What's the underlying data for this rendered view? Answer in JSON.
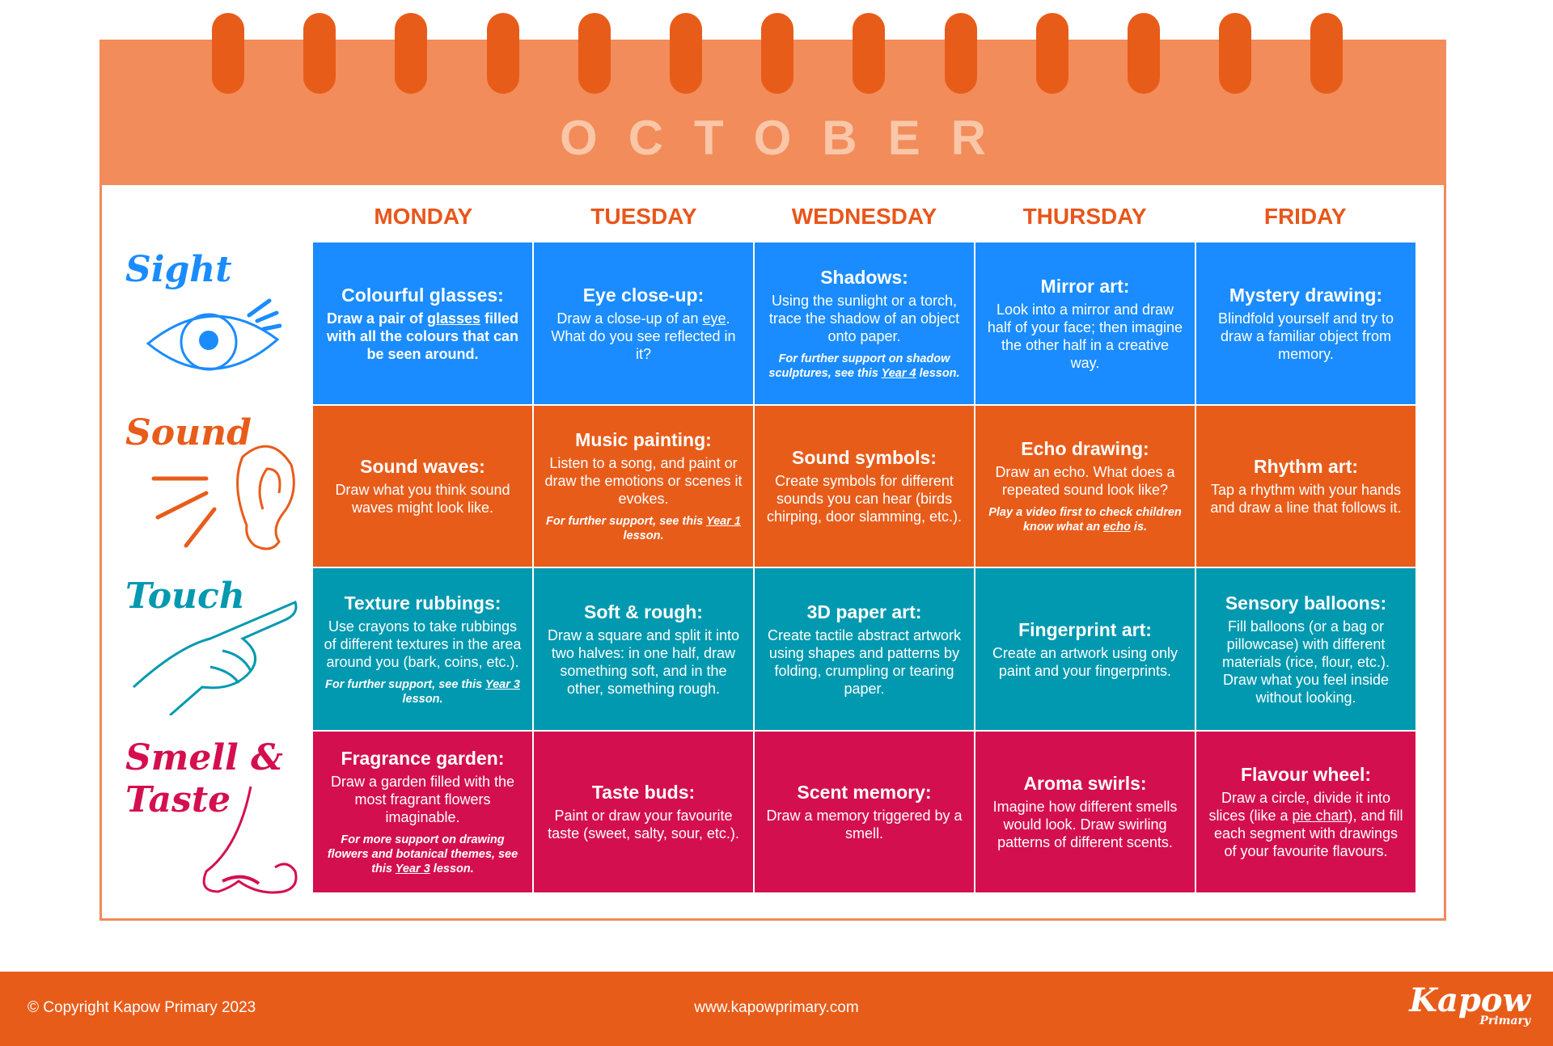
{
  "month": "OCTOBER",
  "days": [
    "MONDAY",
    "TUESDAY",
    "WEDNESDAY",
    "THURSDAY",
    "FRIDAY"
  ],
  "colors": {
    "sight": "#1a8cff",
    "sound": "#e85c1a",
    "touch": "#0099b0",
    "smell_taste": "#d40f4f",
    "header": "#f28c5a",
    "day_heading": "#e8561a"
  },
  "senses": [
    {
      "label": "Sight",
      "icon": "eye-icon",
      "color": "#1a8cff"
    },
    {
      "label": "Sound",
      "icon": "ear-icon",
      "color": "#e85c1a"
    },
    {
      "label": "Touch",
      "icon": "pointing-hand-icon",
      "color": "#0099b0"
    },
    {
      "label": "Smell & Taste",
      "icon": "nose-icon",
      "color": "#d40f4f"
    }
  ],
  "rows": [
    [
      {
        "title": "Colourful glasses:",
        "before": "Draw a pair of ",
        "link": "glasses",
        "after": " filled with all the colours that can be seen around.",
        "bold": true
      },
      {
        "title": "Eye close-up:",
        "before": "Draw a close-up of an ",
        "link": "eye",
        "after": ". What do you see reflected in it?"
      },
      {
        "title": "Shadows:",
        "before": "Using the sunlight or a torch, trace the shadow of an object onto paper.",
        "note_before": "For further support on shadow sculptures, see this ",
        "note_link": "Year 4",
        "note_after": " lesson."
      },
      {
        "title": "Mirror art:",
        "before": "Look into a mirror and draw half of your face; then imagine the other half in a creative way."
      },
      {
        "title": "Mystery drawing:",
        "before": "Blindfold yourself and try to draw a familiar object from memory."
      }
    ],
    [
      {
        "title": "Sound waves:",
        "before": "Draw what you think sound waves might look like."
      },
      {
        "title": "Music painting:",
        "before": "Listen to a song, and paint or draw the emotions or scenes it evokes.",
        "note_before": "For further support, see this ",
        "note_link": "Year 1",
        "note_after": " lesson."
      },
      {
        "title": "Sound symbols:",
        "before": "Create symbols for different sounds you can hear (birds chirping, door slamming, etc.)."
      },
      {
        "title": "Echo drawing:",
        "before": "Draw an echo. What does a repeated sound look like?",
        "note_before": "Play a video first to check children know what an ",
        "note_link": "echo",
        "note_after": " is."
      },
      {
        "title": "Rhythm art:",
        "before": "Tap a rhythm with your hands and draw a line that follows it."
      }
    ],
    [
      {
        "title": "Texture rubbings:",
        "before": "Use crayons to take rubbings of different textures in the area around you (bark, coins, etc.).",
        "note_before": "For further support, see this ",
        "note_link": "Year 3",
        "note_after": " lesson."
      },
      {
        "title": "Soft & rough:",
        "before": "Draw a square and split it into two halves: in one half, draw something soft, and in the other, something rough."
      },
      {
        "title": "3D paper art:",
        "before": "Create tactile abstract artwork using shapes and patterns by folding, crumpling or tearing paper."
      },
      {
        "title": "Fingerprint art:",
        "before": "Create an artwork using only paint and your fingerprints."
      },
      {
        "title": "Sensory balloons:",
        "before": "Fill balloons (or a bag or pillowcase) with different materials (rice, flour, etc.). Draw what you feel inside without looking."
      }
    ],
    [
      {
        "title": "Fragrance garden:",
        "before": "Draw a garden filled with the most fragrant flowers imaginable.",
        "note_before": "For more support on drawing flowers and botanical themes, see this ",
        "note_link": "Year 3",
        "note_after": " lesson."
      },
      {
        "title": "Taste buds:",
        "before": "Paint or draw your favourite taste (sweet, salty, sour, etc.)."
      },
      {
        "title": "Scent memory:",
        "before": "Draw a memory triggered by a smell."
      },
      {
        "title": "Aroma swirls:",
        "before": "Imagine how different smells would look. Draw swirling patterns of different scents."
      },
      {
        "title": "Flavour wheel:",
        "before": "Draw a circle, divide it into slices (like a ",
        "link": "pie chart",
        "after": "), and fill each segment with drawings of your favourite flavours."
      }
    ]
  ],
  "footer": {
    "copyright": "© Copyright Kapow Primary 2023",
    "url": "www.kapowprimary.com",
    "logo": "Kapow",
    "logo_sub": "Primary"
  }
}
